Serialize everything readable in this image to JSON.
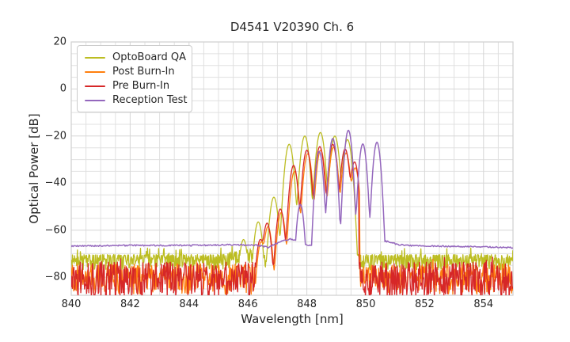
{
  "title": "D4541 V20390 Ch. 6",
  "x_axis_label": "Wavelength [nm]",
  "y_axis_label": "Optical Power [dB]",
  "legend": {
    "items": [
      {
        "label": "OptoBoard QA",
        "color": "#bcbd22"
      },
      {
        "label": "Post Burn-In",
        "color": "#ff7f0e"
      },
      {
        "label": "Pre Burn-In",
        "color": "#d62728"
      },
      {
        "label": "Reception Test",
        "color": "#9467bd"
      }
    ]
  },
  "chart_data": {
    "type": "line",
    "title": "D4541 V20390 Ch. 6",
    "xlabel": "Wavelength [nm]",
    "ylabel": "Optical Power [dB]",
    "legend_position": "upper left",
    "grid": "on",
    "axis": {
      "xlim": [
        840,
        855
      ],
      "ylim": [
        -87.7,
        20
      ],
      "x_major": 2,
      "x_minor": 0.5,
      "y_major": 20,
      "y_minor": 5,
      "x_tick_values": [
        840,
        842,
        844,
        846,
        848,
        850,
        852,
        854
      ],
      "x_tick_labels": [
        "840",
        "842",
        "844",
        "846",
        "848",
        "850",
        "852",
        "854"
      ],
      "y_tick_values": [
        20,
        0,
        -20,
        -40,
        -60,
        -80
      ],
      "y_tick_labels": [
        "20",
        "0",
        "−20",
        "−40",
        "−60",
        "−80"
      ],
      "grid_minor_color": "#e0e0e0",
      "grid_major_color": "#d6d6d6",
      "spine_color": "#cfcfcf",
      "text_color": "#262626",
      "background": "#ffffff"
    },
    "series": [
      {
        "name": "OptoBoard QA",
        "color": "#bcbd22",
        "line_width": 1.3,
        "mode_width_nm": 0.1,
        "seed": 11,
        "modes_nm_db": [
          [
            845.85,
            -64
          ],
          [
            846.35,
            -56.5
          ],
          [
            846.88,
            -46
          ],
          [
            847.4,
            -23.5
          ],
          [
            847.93,
            -20
          ],
          [
            848.46,
            -18.5
          ],
          [
            848.95,
            -20
          ],
          [
            849.38,
            -21.5
          ]
        ],
        "noise": {
          "top": -70.4,
          "depth": 6.5,
          "power": 1.5,
          "step": 0.014,
          "spike_prob": 0.06,
          "spike": 2.8,
          "ramp": [
            845.0,
            846.35,
            3.2
          ]
        }
      },
      {
        "name": "Post Burn-In",
        "color": "#ff7f0e",
        "line_width": 1.3,
        "mode_width_nm": 0.095,
        "seed": 5,
        "cutoff_nm": 849.8,
        "modes_nm_db": [
          [
            846.45,
            -65
          ],
          [
            846.68,
            -58.5
          ],
          [
            847.13,
            -52.5
          ],
          [
            847.58,
            -35
          ],
          [
            848.03,
            -27.5
          ],
          [
            848.47,
            -26
          ],
          [
            848.91,
            -24.8
          ],
          [
            849.33,
            -27.2
          ],
          [
            849.64,
            -33.5
          ]
        ],
        "noise": {
          "top": -74.3,
          "depth": 13.0,
          "power": 1.2,
          "step": 0.021,
          "spike_prob": 0.04,
          "spike": 2.4
        }
      },
      {
        "name": "Pre Burn-In",
        "color": "#d62728",
        "line_width": 1.3,
        "mode_width_nm": 0.095,
        "seed": 3,
        "cutoff_nm": 849.77,
        "modes_nm_db": [
          [
            846.42,
            -64
          ],
          [
            846.65,
            -57
          ],
          [
            847.1,
            -51
          ],
          [
            847.55,
            -32.5
          ],
          [
            848.0,
            -26
          ],
          [
            848.44,
            -24.5
          ],
          [
            848.88,
            -23.5
          ],
          [
            849.3,
            -25.5
          ],
          [
            849.62,
            -31
          ]
        ],
        "noise": {
          "top": -73.6,
          "depth": 15.5,
          "power": 1.2,
          "step": 0.018,
          "spike_prob": 0.03,
          "spike": 2.2
        }
      },
      {
        "name": "Reception Test",
        "color": "#9467bd",
        "line_width": 1.5,
        "mode_width_nm": 0.085,
        "seed": 9,
        "modes_nm_db": [
          [
            847.78,
            -49
          ],
          [
            848.42,
            -26.5
          ],
          [
            848.88,
            -21
          ],
          [
            849.41,
            -17.5
          ],
          [
            849.9,
            -23.3
          ],
          [
            850.38,
            -22.6
          ]
        ],
        "smooth": {
          "step": 0.03,
          "jitter": 0.3,
          "anchors": [
            [
              840,
              -66.8
            ],
            [
              842,
              -66.5
            ],
            [
              844,
              -66.5
            ],
            [
              845.5,
              -66.2
            ],
            [
              846.35,
              -66.5
            ],
            [
              846.7,
              -67.3
            ],
            [
              847.1,
              -64.9
            ],
            [
              847.45,
              -63.7
            ],
            [
              847.62,
              -64.6
            ],
            [
              848.0,
              -66.4
            ],
            [
              850.45,
              -66.4
            ],
            [
              850.68,
              -64.7
            ],
            [
              851.1,
              -66.1
            ],
            [
              851.6,
              -66.7
            ],
            [
              853.0,
              -66.9
            ],
            [
              855,
              -67.4
            ]
          ]
        }
      }
    ]
  }
}
